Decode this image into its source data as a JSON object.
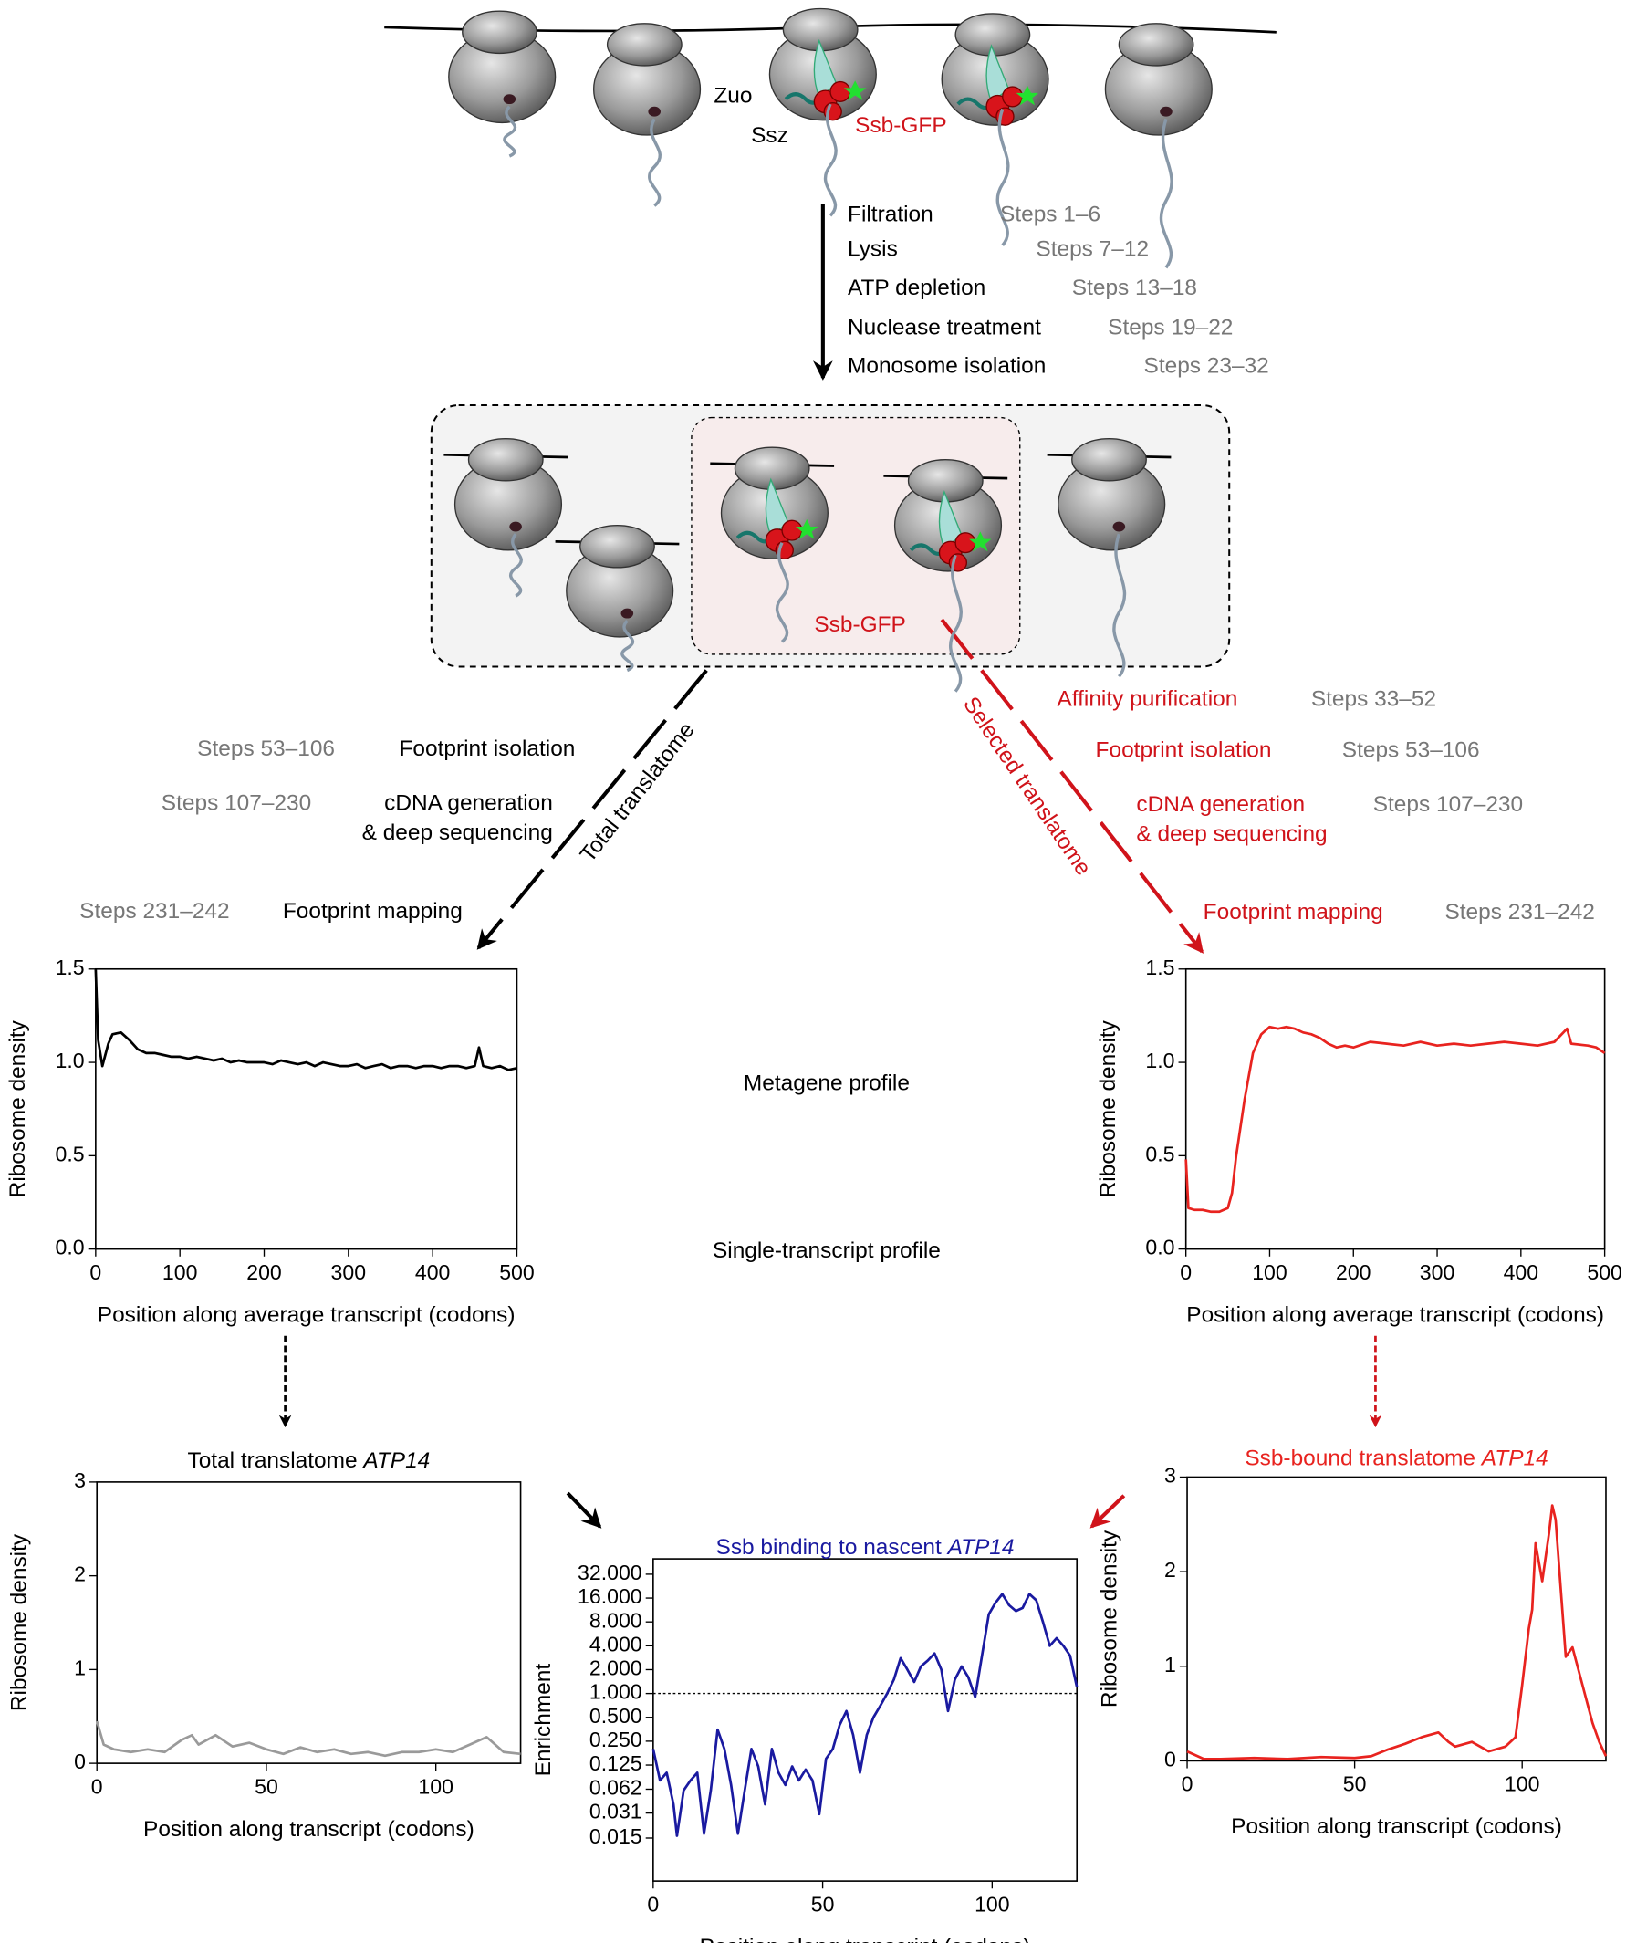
{
  "diagram": {
    "top": {
      "zuo": "Zuo",
      "ssz": "Ssz",
      "ssb": "Ssb-GFP"
    },
    "steps": [
      {
        "label": "Filtration",
        "steps": "Steps 1–6"
      },
      {
        "label": "Lysis",
        "steps": "Steps 7–12"
      },
      {
        "label": "ATP depletion",
        "steps": "Steps 13–18"
      },
      {
        "label": "Nuclease treatment",
        "steps": "Steps 19–22"
      },
      {
        "label": "Monosome isolation",
        "steps": "Steps 23–32"
      }
    ],
    "box_label": "Ssb-GFP",
    "left": {
      "branch": "Total translatome",
      "steps": [
        {
          "label": "Footprint isolation",
          "steps": "Steps 53–106"
        },
        {
          "label": "cDNA generation",
          "label2": "& deep sequencing",
          "steps": "Steps 107–230"
        },
        {
          "label": "Footprint mapping",
          "steps": "Steps 231–242"
        }
      ]
    },
    "right": {
      "branch": "Selected translatome",
      "steps": [
        {
          "label": "Affinity purification",
          "steps": "Steps 33–52"
        },
        {
          "label": "Footprint isolation",
          "steps": "Steps 53–106"
        },
        {
          "label": "cDNA generation",
          "label2": "& deep sequencing",
          "steps": "Steps 107–230"
        },
        {
          "label": "Footprint mapping",
          "steps": "Steps 231–242"
        }
      ]
    },
    "metagene": "Metagene profile",
    "single": "Single-transcript profile"
  },
  "chart_data": [
    {
      "type": "line",
      "color": "#000000",
      "xlabel": "Position along average transcript (codons)",
      "ylabel": "Ribosome density",
      "xlim": [
        0,
        500
      ],
      "xticks": [
        0,
        100,
        200,
        300,
        400,
        500
      ],
      "ylim": [
        0,
        1.5
      ],
      "yticks": [
        {
          "value": 0,
          "label": "0.0"
        },
        0.5,
        {
          "value": 1,
          "label": "1.0"
        },
        1.5
      ],
      "x": [
        0,
        3,
        8,
        15,
        20,
        30,
        40,
        50,
        60,
        70,
        80,
        90,
        100,
        110,
        120,
        130,
        140,
        150,
        160,
        170,
        180,
        190,
        200,
        210,
        220,
        230,
        240,
        250,
        260,
        270,
        280,
        290,
        300,
        310,
        320,
        330,
        340,
        350,
        360,
        370,
        380,
        390,
        400,
        410,
        420,
        430,
        440,
        450,
        455,
        460,
        470,
        480,
        490,
        500
      ],
      "values": [
        1.5,
        1.12,
        0.98,
        1.1,
        1.15,
        1.16,
        1.12,
        1.07,
        1.05,
        1.05,
        1.04,
        1.03,
        1.03,
        1.02,
        1.03,
        1.02,
        1.01,
        1.02,
        1.0,
        1.01,
        1.0,
        1.0,
        1.0,
        0.99,
        1.01,
        1.0,
        0.99,
        1.0,
        0.98,
        1.0,
        0.99,
        0.98,
        0.98,
        0.99,
        0.97,
        0.98,
        0.99,
        0.97,
        0.98,
        0.98,
        0.97,
        0.98,
        0.98,
        0.97,
        0.98,
        0.98,
        0.97,
        0.98,
        1.08,
        0.98,
        0.97,
        0.98,
        0.96,
        0.97
      ]
    },
    {
      "type": "line",
      "color": "#e8231f",
      "xlabel": "Position along average transcript (codons)",
      "ylabel": "Ribosome density",
      "xlim": [
        0,
        500
      ],
      "xticks": [
        0,
        100,
        200,
        300,
        400,
        500
      ],
      "ylim": [
        0,
        1.5
      ],
      "yticks": [
        {
          "value": 0,
          "label": "0.0"
        },
        0.5,
        {
          "value": 1,
          "label": "1.0"
        },
        1.5
      ],
      "x": [
        0,
        3,
        10,
        20,
        30,
        40,
        50,
        55,
        60,
        70,
        80,
        90,
        100,
        110,
        120,
        130,
        140,
        150,
        160,
        170,
        180,
        190,
        200,
        220,
        240,
        260,
        280,
        300,
        320,
        340,
        360,
        380,
        400,
        420,
        440,
        455,
        460,
        480,
        490,
        500
      ],
      "values": [
        0.48,
        0.22,
        0.21,
        0.21,
        0.2,
        0.2,
        0.22,
        0.3,
        0.5,
        0.8,
        1.05,
        1.15,
        1.19,
        1.18,
        1.19,
        1.18,
        1.16,
        1.15,
        1.13,
        1.1,
        1.08,
        1.09,
        1.08,
        1.11,
        1.1,
        1.09,
        1.11,
        1.09,
        1.1,
        1.09,
        1.1,
        1.11,
        1.1,
        1.09,
        1.11,
        1.18,
        1.1,
        1.09,
        1.08,
        1.05
      ]
    },
    {
      "type": "line",
      "color": "#9a9a9a",
      "title": "Total translatome",
      "title_italic": "ATP14",
      "xlabel": "Position along transcript (codons)",
      "ylabel": "Ribosome density",
      "xlim": [
        0,
        125
      ],
      "xticks": [
        0,
        50,
        100
      ],
      "ylim": [
        0,
        3
      ],
      "yticks": [
        0,
        1,
        2,
        3
      ],
      "x": [
        0,
        2,
        5,
        10,
        15,
        20,
        25,
        28,
        30,
        35,
        40,
        45,
        50,
        55,
        60,
        65,
        70,
        75,
        80,
        85,
        90,
        95,
        100,
        105,
        110,
        115,
        120,
        125
      ],
      "values": [
        0.45,
        0.2,
        0.15,
        0.12,
        0.15,
        0.12,
        0.25,
        0.3,
        0.2,
        0.3,
        0.18,
        0.22,
        0.15,
        0.1,
        0.17,
        0.12,
        0.15,
        0.1,
        0.12,
        0.08,
        0.12,
        0.12,
        0.15,
        0.12,
        0.2,
        0.28,
        0.12,
        0.1
      ]
    },
    {
      "type": "line",
      "color": "#1a1aa0",
      "title": "Ssb binding to nascent",
      "title_italic": "ATP14",
      "xlabel": "Position along transcript (codons)",
      "ylabel": "Enrichment",
      "yscale": "log",
      "hline": 1,
      "xlim": [
        0,
        125
      ],
      "xticks": [
        0,
        50,
        100
      ],
      "ylim": [
        0.0043,
        50
      ],
      "yticks": [
        {
          "value": 0.015,
          "label": "0.015"
        },
        {
          "value": 0.031,
          "label": "0.031"
        },
        {
          "value": 0.062,
          "label": "0.062"
        },
        {
          "value": 0.125,
          "label": "0.125"
        },
        {
          "value": 0.25,
          "label": "0.250"
        },
        {
          "value": 0.5,
          "label": "0.500"
        },
        {
          "value": 1,
          "label": "1.000"
        },
        {
          "value": 2,
          "label": "2.000"
        },
        {
          "value": 4,
          "label": "4.000"
        },
        {
          "value": 8,
          "label": "8.000"
        },
        {
          "value": 16,
          "label": "16.000"
        },
        {
          "value": 32,
          "label": "32.000"
        }
      ],
      "x": [
        0,
        2,
        4,
        6,
        7,
        9,
        11,
        13,
        15,
        17,
        19,
        21,
        23,
        25,
        27,
        29,
        31,
        33,
        35,
        37,
        39,
        41,
        43,
        45,
        47,
        49,
        51,
        53,
        55,
        57,
        59,
        61,
        63,
        65,
        67,
        69,
        71,
        73,
        75,
        77,
        79,
        81,
        83,
        85,
        87,
        89,
        91,
        93,
        95,
        97,
        99,
        101,
        103,
        105,
        107,
        109,
        111,
        113,
        115,
        117,
        119,
        121,
        123,
        125
      ],
      "values": [
        0.2,
        0.08,
        0.1,
        0.04,
        0.016,
        0.06,
        0.08,
        0.1,
        0.017,
        0.06,
        0.35,
        0.2,
        0.07,
        0.017,
        0.06,
        0.2,
        0.12,
        0.04,
        0.2,
        0.1,
        0.07,
        0.12,
        0.08,
        0.11,
        0.08,
        0.03,
        0.15,
        0.2,
        0.4,
        0.6,
        0.3,
        0.1,
        0.3,
        0.5,
        0.7,
        1.0,
        1.5,
        2.8,
        2.0,
        1.4,
        2.2,
        2.6,
        3.2,
        2.0,
        0.6,
        1.5,
        2.2,
        1.6,
        0.9,
        3.0,
        10,
        14,
        18,
        13,
        11,
        12,
        18,
        15,
        8,
        4,
        5,
        4,
        3,
        1.2
      ]
    },
    {
      "type": "line",
      "color": "#e8231f",
      "title": "Ssb-bound translatome",
      "title_italic": "ATP14",
      "xlabel": "Position along transcript (codons)",
      "ylabel": "Ribosome density",
      "xlim": [
        0,
        125
      ],
      "xticks": [
        0,
        50,
        100
      ],
      "ylim": [
        0,
        3
      ],
      "yticks": [
        0,
        1,
        2,
        3
      ],
      "x": [
        0,
        5,
        10,
        20,
        30,
        40,
        50,
        55,
        60,
        65,
        70,
        75,
        78,
        80,
        85,
        90,
        95,
        98,
        100,
        102,
        103,
        104,
        106,
        108,
        109,
        110,
        112,
        113,
        115,
        118,
        121,
        123,
        125
      ],
      "values": [
        0.1,
        0.02,
        0.02,
        0.03,
        0.02,
        0.04,
        0.03,
        0.05,
        0.12,
        0.18,
        0.25,
        0.3,
        0.2,
        0.15,
        0.2,
        0.1,
        0.15,
        0.25,
        0.8,
        1.4,
        1.6,
        2.3,
        1.9,
        2.4,
        2.7,
        2.55,
        1.6,
        1.1,
        1.2,
        0.8,
        0.4,
        0.2,
        0.05
      ]
    }
  ]
}
